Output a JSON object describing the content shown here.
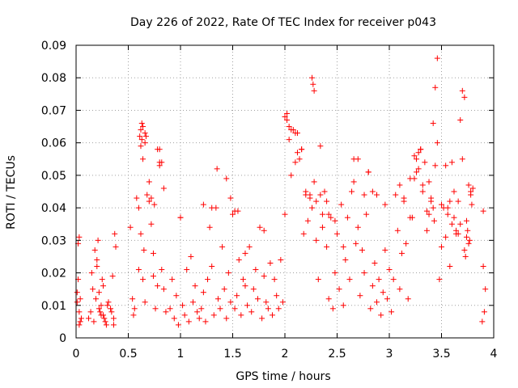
{
  "chart_data": {
    "type": "scatter",
    "title": "Day 226 of 2022, Rate Of TEC Index for receiver p043",
    "xlabel": "GPS time / hours",
    "ylabel": "ROTI / TECUs",
    "xlim": [
      0,
      4
    ],
    "ylim": [
      0,
      0.09
    ],
    "grid": true,
    "marker": "+",
    "marker_color": "#ff0000",
    "x_ticks": [
      {
        "value": 0,
        "label": "0"
      },
      {
        "value": 0.5,
        "label": "0.5"
      },
      {
        "value": 1,
        "label": "1"
      },
      {
        "value": 1.5,
        "label": "1.5"
      },
      {
        "value": 2,
        "label": "2"
      },
      {
        "value": 2.5,
        "label": "2.5"
      },
      {
        "value": 3,
        "label": "3"
      },
      {
        "value": 3.5,
        "label": "3.5"
      },
      {
        "value": 4,
        "label": "4"
      }
    ],
    "y_ticks": [
      {
        "value": 0,
        "label": "0"
      },
      {
        "value": 0.01,
        "label": "0.01"
      },
      {
        "value": 0.02,
        "label": "0.02"
      },
      {
        "value": 0.03,
        "label": "0.03"
      },
      {
        "value": 0.04,
        "label": "0.04"
      },
      {
        "value": 0.05,
        "label": "0.05"
      },
      {
        "value": 0.06,
        "label": "0.06"
      },
      {
        "value": 0.07,
        "label": "0.07"
      },
      {
        "value": 0.08,
        "label": "0.08"
      },
      {
        "value": 0.09,
        "label": "0.09"
      }
    ],
    "series": [
      {
        "name": "ROTI",
        "x": [
          0.01,
          0.02,
          0.03,
          0.03,
          0.04,
          0.02,
          0.01,
          0.03,
          0.05,
          0.04,
          0.12,
          0.14,
          0.16,
          0.18,
          0.2,
          0.22,
          0.24,
          0.26,
          0.28,
          0.3,
          0.15,
          0.17,
          0.19,
          0.21,
          0.23,
          0.25,
          0.27,
          0.29,
          0.31,
          0.33,
          0.36,
          0.37,
          0.38,
          0.35,
          0.34,
          0.36,
          0.2,
          0.22,
          0.24,
          0.26,
          0.52,
          0.54,
          0.55,
          0.56,
          0.58,
          0.6,
          0.61,
          0.62,
          0.63,
          0.64,
          0.65,
          0.66,
          0.68,
          0.7,
          0.72,
          0.74,
          0.76,
          0.78,
          0.8,
          0.82,
          0.84,
          0.86,
          0.6,
          0.62,
          0.64,
          0.66,
          0.7,
          0.74,
          0.78,
          0.8,
          0.9,
          0.92,
          0.94,
          0.96,
          0.98,
          1.0,
          1.02,
          1.04,
          1.06,
          1.08,
          1.1,
          1.12,
          1.14,
          1.16,
          1.18,
          1.2,
          1.22,
          1.24,
          1.26,
          1.28,
          1.3,
          1.32,
          1.34,
          1.36,
          1.38,
          1.4,
          1.42,
          1.44,
          1.46,
          1.48,
          1.5,
          1.52,
          1.54,
          1.56,
          1.58,
          1.6,
          1.62,
          1.64,
          1.66,
          1.68,
          1.7,
          1.72,
          1.74,
          1.76,
          1.78,
          1.8,
          1.82,
          1.84,
          1.86,
          1.88,
          1.9,
          1.92,
          1.94,
          1.96,
          1.98,
          2.0,
          2.02,
          2.04,
          2.06,
          2.08,
          2.1,
          2.12,
          2.14,
          2.16,
          2.18,
          2.2,
          2.22,
          2.24,
          2.26,
          2.28,
          2.3,
          2.32,
          2.34,
          2.36,
          2.38,
          2.4,
          2.42,
          2.44,
          2.46,
          2.48,
          2.5,
          2.52,
          2.54,
          2.56,
          2.58,
          2.6,
          2.62,
          2.64,
          2.66,
          2.68,
          2.7,
          2.72,
          2.74,
          2.76,
          2.78,
          2.8,
          2.82,
          2.84,
          2.86,
          2.88,
          2.9,
          2.92,
          2.94,
          2.96,
          2.98,
          3.0,
          3.02,
          3.04,
          3.06,
          3.08,
          3.1,
          3.12,
          3.14,
          3.16,
          3.18,
          3.2,
          3.22,
          3.24,
          3.26,
          3.28,
          3.3,
          3.32,
          3.34,
          3.36,
          3.38,
          3.4,
          3.42,
          3.44,
          3.46,
          3.48,
          3.5,
          3.52,
          3.54,
          3.56,
          3.58,
          3.6,
          3.62,
          3.64,
          3.66,
          3.68,
          3.7,
          3.72,
          3.74,
          3.76,
          3.78,
          3.79,
          3.8,
          3.77,
          3.75,
          3.73,
          0.62,
          0.63,
          0.64,
          0.66,
          0.67,
          0.72,
          0.75,
          0.8,
          0.82,
          0.84,
          1.0,
          1.22,
          1.3,
          1.35,
          1.44,
          1.48,
          1.52,
          1.55,
          1.62,
          1.8,
          2.0,
          2.02,
          2.04,
          2.06,
          2.1,
          2.12,
          2.16,
          2.2,
          2.24,
          2.26,
          2.27,
          2.28,
          2.3,
          2.34,
          2.36,
          2.4,
          2.42,
          2.48,
          2.56,
          2.66,
          2.7,
          2.76,
          2.8,
          2.84,
          2.88,
          2.96,
          3.1,
          3.14,
          3.2,
          3.24,
          3.26,
          3.28,
          3.3,
          3.32,
          3.36,
          3.38,
          3.4,
          3.42,
          3.43,
          3.44,
          3.46,
          3.5,
          3.54,
          3.56,
          3.58,
          3.6,
          3.62,
          3.64,
          3.66,
          3.68,
          3.7,
          3.72,
          3.74,
          3.76,
          3.78,
          3.9,
          3.9,
          3.92,
          3.91,
          3.89
        ],
        "y": [
          0.014,
          0.029,
          0.031,
          0.008,
          0.005,
          0.018,
          0.011,
          0.004,
          0.006,
          0.012,
          0.006,
          0.008,
          0.015,
          0.027,
          0.024,
          0.009,
          0.007,
          0.016,
          0.005,
          0.01,
          0.02,
          0.005,
          0.012,
          0.03,
          0.008,
          0.018,
          0.006,
          0.004,
          0.011,
          0.009,
          0.006,
          0.032,
          0.028,
          0.019,
          0.008,
          0.004,
          0.022,
          0.014,
          0.01,
          0.007,
          0.034,
          0.012,
          0.007,
          0.009,
          0.043,
          0.021,
          0.062,
          0.064,
          0.066,
          0.055,
          0.027,
          0.011,
          0.044,
          0.048,
          0.035,
          0.026,
          0.009,
          0.058,
          0.053,
          0.021,
          0.015,
          0.008,
          0.04,
          0.032,
          0.018,
          0.06,
          0.042,
          0.019,
          0.016,
          0.054,
          0.009,
          0.018,
          0.006,
          0.013,
          0.004,
          0.037,
          0.01,
          0.007,
          0.021,
          0.005,
          0.025,
          0.011,
          0.016,
          0.008,
          0.006,
          0.009,
          0.014,
          0.005,
          0.018,
          0.034,
          0.022,
          0.007,
          0.04,
          0.012,
          0.009,
          0.028,
          0.015,
          0.006,
          0.02,
          0.011,
          0.038,
          0.009,
          0.013,
          0.024,
          0.007,
          0.018,
          0.016,
          0.01,
          0.028,
          0.008,
          0.015,
          0.021,
          0.012,
          0.034,
          0.006,
          0.019,
          0.011,
          0.009,
          0.023,
          0.007,
          0.018,
          0.013,
          0.009,
          0.024,
          0.011,
          0.038,
          0.067,
          0.065,
          0.05,
          0.064,
          0.054,
          0.063,
          0.055,
          0.058,
          0.032,
          0.044,
          0.036,
          0.043,
          0.04,
          0.048,
          0.03,
          0.018,
          0.059,
          0.034,
          0.045,
          0.028,
          0.012,
          0.037,
          0.009,
          0.02,
          0.032,
          0.015,
          0.041,
          0.01,
          0.024,
          0.037,
          0.018,
          0.045,
          0.055,
          0.029,
          0.034,
          0.013,
          0.027,
          0.02,
          0.038,
          0.051,
          0.009,
          0.016,
          0.023,
          0.011,
          0.018,
          0.007,
          0.014,
          0.027,
          0.012,
          0.021,
          0.008,
          0.018,
          0.044,
          0.033,
          0.015,
          0.026,
          0.042,
          0.029,
          0.012,
          0.049,
          0.037,
          0.056,
          0.051,
          0.057,
          0.058,
          0.045,
          0.054,
          0.039,
          0.048,
          0.043,
          0.066,
          0.077,
          0.086,
          0.018,
          0.028,
          0.04,
          0.031,
          0.038,
          0.022,
          0.054,
          0.045,
          0.032,
          0.042,
          0.067,
          0.076,
          0.074,
          0.036,
          0.029,
          0.044,
          0.041,
          0.046,
          0.03,
          0.033,
          0.025,
          0.059,
          0.061,
          0.065,
          0.063,
          0.062,
          0.043,
          0.041,
          0.058,
          0.054,
          0.046,
          0.037,
          0.041,
          0.04,
          0.052,
          0.049,
          0.043,
          0.039,
          0.039,
          0.026,
          0.033,
          0.068,
          0.069,
          0.061,
          0.064,
          0.063,
          0.057,
          0.058,
          0.045,
          0.044,
          0.08,
          0.078,
          0.076,
          0.042,
          0.044,
          0.038,
          0.042,
          0.038,
          0.036,
          0.028,
          0.048,
          0.055,
          0.044,
          0.051,
          0.045,
          0.044,
          0.041,
          0.047,
          0.043,
          0.037,
          0.049,
          0.055,
          0.052,
          0.058,
          0.047,
          0.033,
          0.038,
          0.042,
          0.04,
          0.036,
          0.053,
          0.06,
          0.041,
          0.053,
          0.04,
          0.042,
          0.035,
          0.037,
          0.033,
          0.032,
          0.035,
          0.055,
          0.027,
          0.031,
          0.047,
          0.045,
          0.039,
          0.022,
          0.015,
          0.008,
          0.005
        ]
      }
    ]
  }
}
